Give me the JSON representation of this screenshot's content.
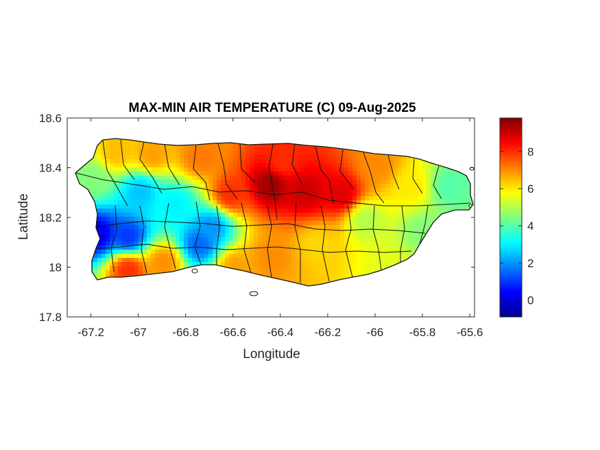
{
  "chart_data": {
    "type": "heatmap",
    "title": "MAX-MIN AIR TEMPERATURE (C) 09-Aug-2025",
    "xlabel": "Longitude",
    "ylabel": "Latitude",
    "xlim": [
      -67.3,
      -65.58
    ],
    "ylim": [
      17.8,
      18.6
    ],
    "xticks": [
      -67.2,
      -67,
      -66.8,
      -66.6,
      -66.4,
      -66.2,
      -66,
      -65.8,
      -65.6
    ],
    "xtick_labels": [
      "-67.2",
      "-67",
      "-66.8",
      "-66.6",
      "-66.4",
      "-66.2",
      "-66",
      "-65.8",
      "-65.6"
    ],
    "yticks": [
      17.8,
      18,
      18.2,
      18.4,
      18.6
    ],
    "ytick_labels": [
      "17.8",
      "18",
      "18.2",
      "18.4",
      "18.6"
    ],
    "colorbar": {
      "range": [
        -0.9,
        9.8
      ],
      "ticks": [
        0,
        2,
        4,
        6,
        8
      ],
      "tick_labels": [
        "0",
        "2",
        "4",
        "6",
        "8"
      ],
      "colormap": "jet"
    },
    "grid": false,
    "regions": [
      {
        "lon": -67.18,
        "lat": 18.14,
        "value": 0.2
      },
      {
        "lon": -67.05,
        "lat": 18.13,
        "value": 1.0
      },
      {
        "lon": -66.75,
        "lat": 18.1,
        "value": 1.5
      },
      {
        "lon": -66.7,
        "lat": 18.17,
        "value": 2.0
      },
      {
        "lon": -67.0,
        "lat": 18.31,
        "value": 2.5
      },
      {
        "lon": -66.85,
        "lat": 18.26,
        "value": 3.0
      },
      {
        "lon": -67.2,
        "lat": 18.36,
        "value": 4.5
      },
      {
        "lon": -67.1,
        "lat": 18.47,
        "value": 6.5
      },
      {
        "lon": -66.95,
        "lat": 18.46,
        "value": 6.8
      },
      {
        "lon": -66.75,
        "lat": 18.45,
        "value": 7.2
      },
      {
        "lon": -67.05,
        "lat": 18.0,
        "value": 8.0
      },
      {
        "lon": -66.9,
        "lat": 18.03,
        "value": 7.0
      },
      {
        "lon": -66.62,
        "lat": 18.3,
        "value": 8.0
      },
      {
        "lon": -66.45,
        "lat": 18.34,
        "value": 9.5
      },
      {
        "lon": -66.3,
        "lat": 18.31,
        "value": 9.0
      },
      {
        "lon": -66.15,
        "lat": 18.3,
        "value": 8.8
      },
      {
        "lon": -66.4,
        "lat": 18.43,
        "value": 8.0
      },
      {
        "lon": -66.45,
        "lat": 18.05,
        "value": 7.0
      },
      {
        "lon": -66.6,
        "lat": 18.01,
        "value": 6.8
      },
      {
        "lon": -66.25,
        "lat": 18.1,
        "value": 6.2
      },
      {
        "lon": -66.05,
        "lat": 18.2,
        "value": 5.0
      },
      {
        "lon": -65.95,
        "lat": 18.0,
        "value": 5.5
      },
      {
        "lon": -65.85,
        "lat": 18.33,
        "value": 6.0
      },
      {
        "lon": -65.7,
        "lat": 18.33,
        "value": 4.0
      },
      {
        "lon": -65.8,
        "lat": 18.15,
        "value": 4.5
      },
      {
        "lon": -66.0,
        "lat": 18.42,
        "value": 7.0
      }
    ]
  }
}
